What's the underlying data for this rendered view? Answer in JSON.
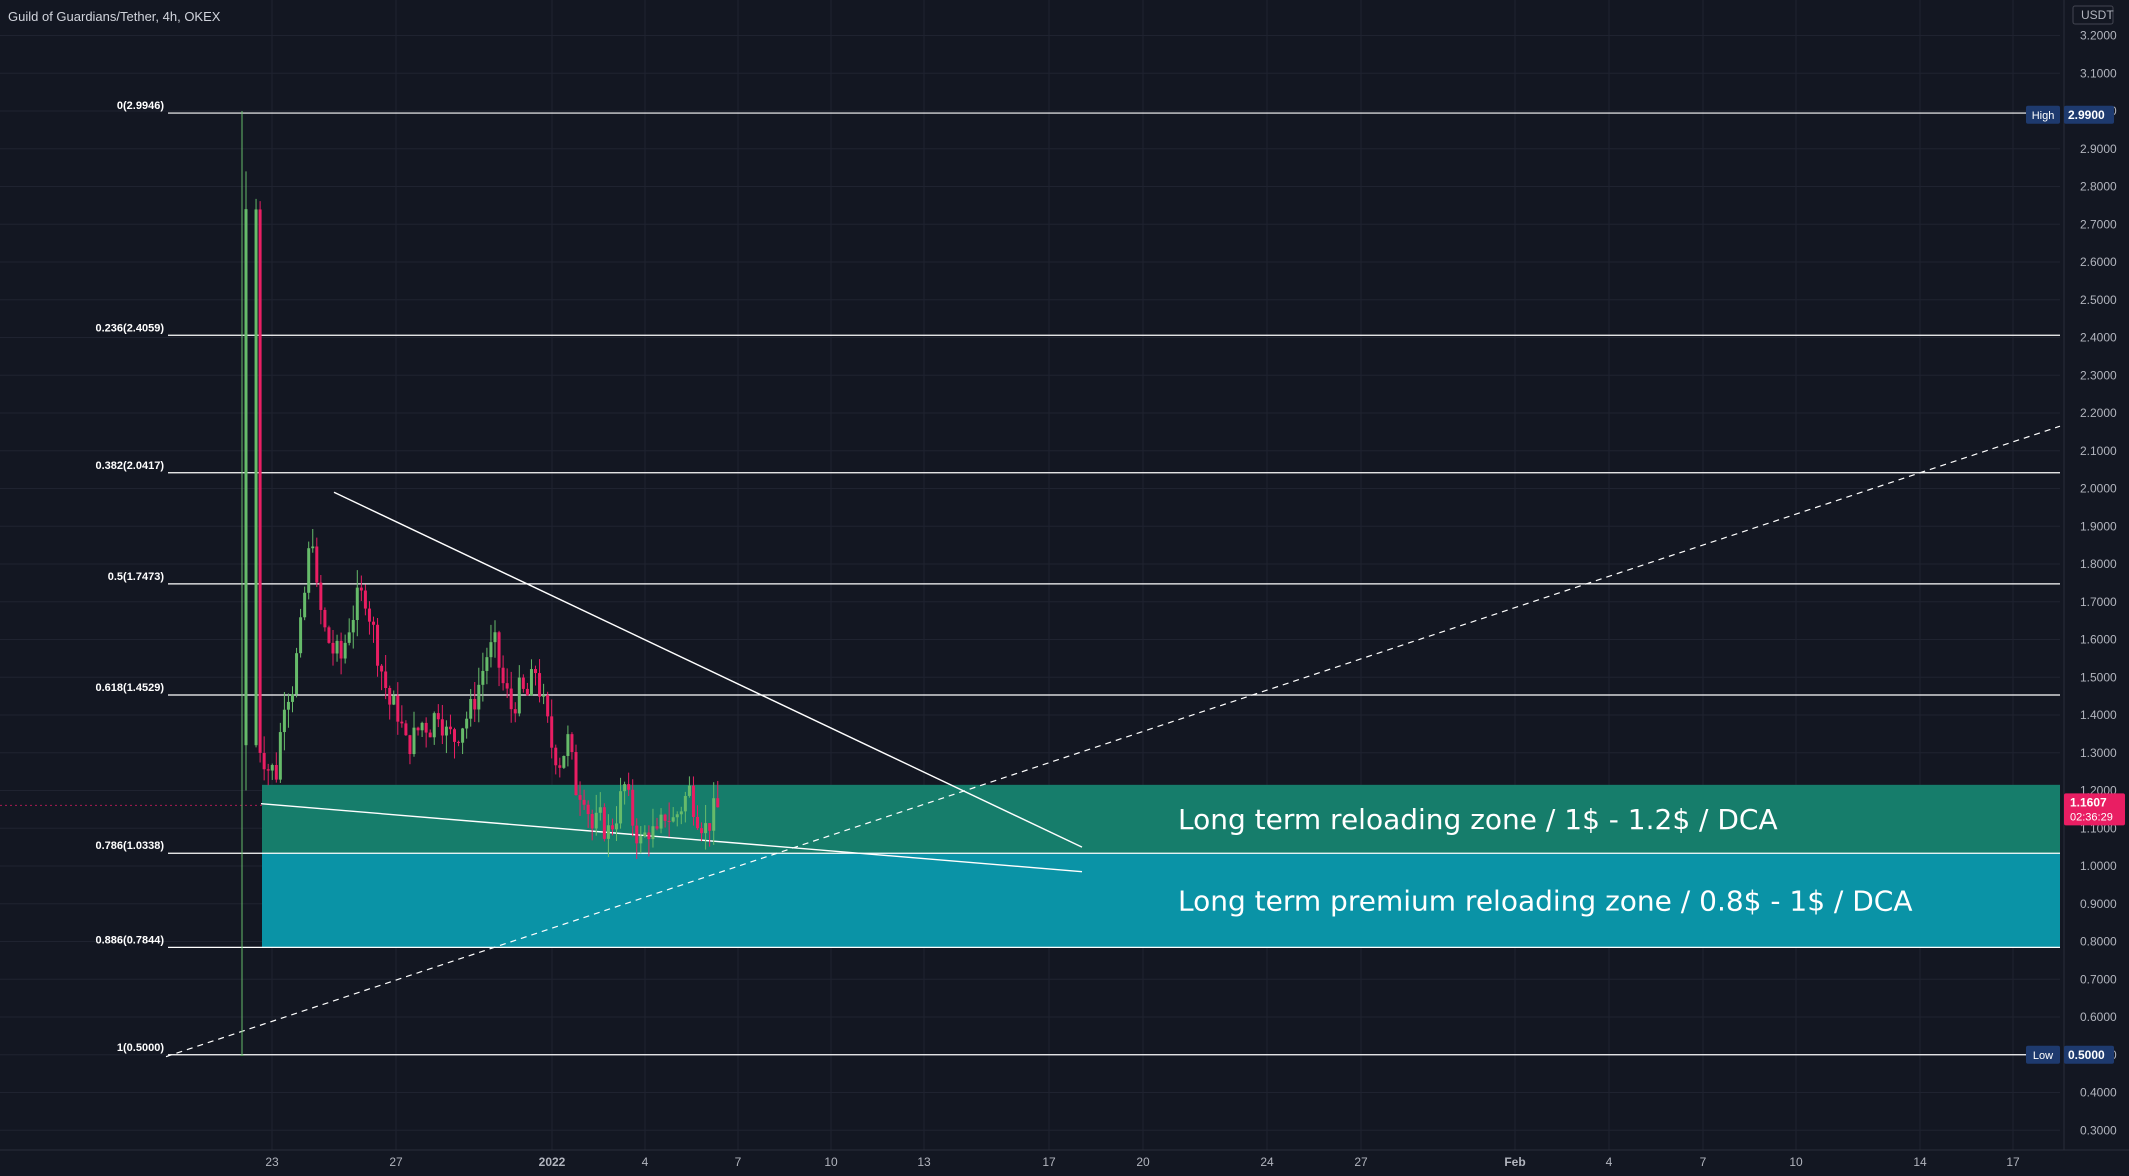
{
  "header": {
    "title": "Guild of Guardians/Tether, 4h, OKEX"
  },
  "chart_data": {
    "type": "candlestick",
    "symbol": "Guild of Guardians/Tether",
    "timeframe": "4h",
    "exchange": "OKEX",
    "currency": "USDT",
    "y_ticks": [
      "3.2000",
      "3.1000",
      "3.0000",
      "2.9000",
      "2.8000",
      "2.7000",
      "2.6000",
      "2.5000",
      "2.4000",
      "2.3000",
      "2.2000",
      "2.1000",
      "2.0000",
      "1.9000",
      "1.8000",
      "1.7000",
      "1.6000",
      "1.5000",
      "1.4000",
      "1.3000",
      "1.2000",
      "1.1000",
      "1.0000",
      "0.9000",
      "0.8000",
      "0.7000",
      "0.6000",
      "0.5000",
      "0.4000",
      "0.3000"
    ],
    "x_ticks": [
      "23",
      "27",
      "2022",
      "4",
      "7",
      "10",
      "13",
      "17",
      "20",
      "24",
      "27",
      "Feb",
      "4",
      "7",
      "10",
      "14",
      "17"
    ],
    "fib_levels": [
      {
        "label": "0(2.9946)",
        "value": 2.9946
      },
      {
        "label": "0.236(2.4059)",
        "value": 2.4059
      },
      {
        "label": "0.382(2.0417)",
        "value": 2.0417
      },
      {
        "label": "0.5(1.7473)",
        "value": 1.7473
      },
      {
        "label": "0.618(1.4529)",
        "value": 1.4529
      },
      {
        "label": "0.786(1.0338)",
        "value": 1.0338
      },
      {
        "label": "0.886(0.7844)",
        "value": 0.7844
      },
      {
        "label": "1(0.5000)",
        "value": 0.5
      }
    ],
    "high": {
      "label": "High",
      "value": "2.9900"
    },
    "low": {
      "label": "Low",
      "value": "0.5000"
    },
    "current_price": {
      "value": "1.1607",
      "countdown": "02:36:29"
    },
    "zones": [
      {
        "text": "Long term reloading zone / 1$ - 1.2$ / DCA",
        "from": 1.0338,
        "to": 1.215,
        "color": "#167d6b"
      },
      {
        "text": "Long term premium reloading zone / 0.8$ - 1$ / DCA",
        "from": 0.7844,
        "to": 1.0338,
        "color": "#0a93a6"
      }
    ],
    "close_path": [
      [
        0,
        0.5
      ],
      [
        1,
        2.74
      ],
      [
        2,
        1.32
      ],
      [
        4,
        1.26
      ],
      [
        6,
        1.25
      ],
      [
        8,
        1.45
      ],
      [
        10,
        1.48
      ],
      [
        12,
        1.62
      ],
      [
        14,
        1.82
      ],
      [
        15,
        1.88
      ],
      [
        16,
        1.72
      ],
      [
        18,
        1.62
      ],
      [
        20,
        1.57
      ],
      [
        22,
        1.55
      ],
      [
        24,
        1.64
      ],
      [
        26,
        1.7
      ],
      [
        28,
        1.72
      ],
      [
        30,
        1.62
      ],
      [
        32,
        1.52
      ],
      [
        34,
        1.43
      ],
      [
        36,
        1.41
      ],
      [
        38,
        1.32
      ],
      [
        40,
        1.34
      ],
      [
        42,
        1.38
      ],
      [
        44,
        1.37
      ],
      [
        46,
        1.42
      ],
      [
        48,
        1.35
      ],
      [
        50,
        1.34
      ],
      [
        52,
        1.38
      ],
      [
        54,
        1.41
      ],
      [
        56,
        1.48
      ],
      [
        58,
        1.56
      ],
      [
        60,
        1.58
      ],
      [
        62,
        1.48
      ],
      [
        64,
        1.42
      ],
      [
        66,
        1.46
      ],
      [
        68,
        1.45
      ],
      [
        70,
        1.52
      ],
      [
        72,
        1.42
      ],
      [
        74,
        1.32
      ],
      [
        76,
        1.28
      ],
      [
        78,
        1.33
      ],
      [
        80,
        1.21
      ],
      [
        82,
        1.2
      ],
      [
        84,
        1.1
      ],
      [
        86,
        1.12
      ],
      [
        88,
        1.09
      ],
      [
        90,
        1.14
      ],
      [
        92,
        1.21
      ],
      [
        94,
        1.12
      ],
      [
        96,
        1.06
      ],
      [
        98,
        1.1
      ],
      [
        100,
        1.07
      ],
      [
        102,
        1.14
      ],
      [
        104,
        1.12
      ],
      [
        106,
        1.16
      ],
      [
        108,
        1.2
      ],
      [
        110,
        1.14
      ],
      [
        112,
        1.1
      ],
      [
        114,
        1.14
      ],
      [
        116,
        1.16
      ]
    ],
    "ylim": [
      0.25,
      3.25
    ]
  }
}
